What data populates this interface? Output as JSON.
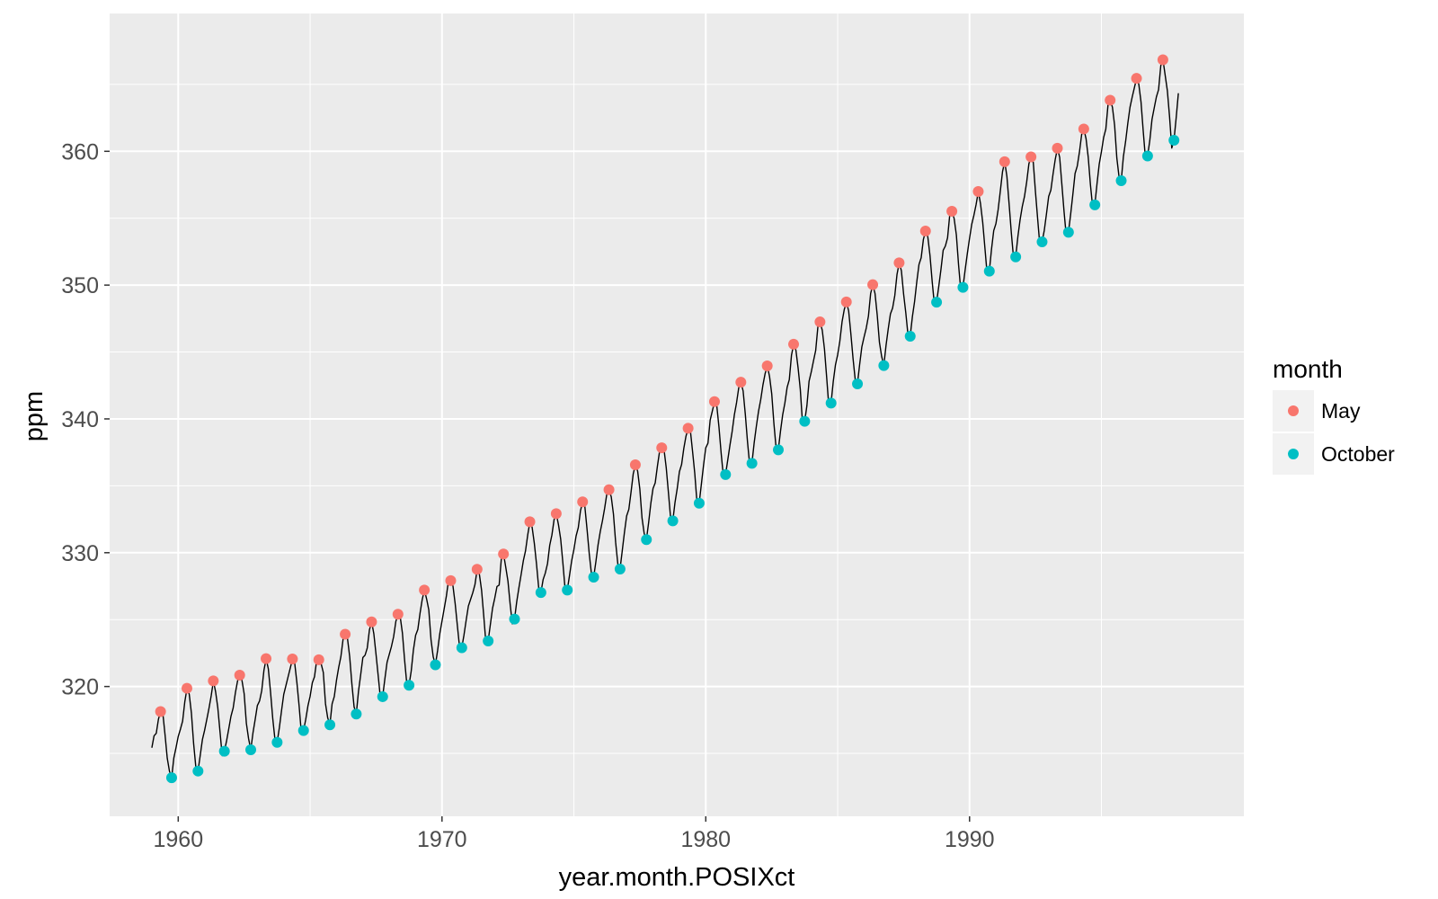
{
  "chart_data": {
    "type": "line",
    "title": "",
    "xlabel": "year.month.POSIXct",
    "ylabel": "ppm",
    "xlim": [
      1957.4,
      2000.4
    ],
    "ylim": [
      310.3,
      370.3
    ],
    "x_ticks": [
      1960,
      1970,
      1980,
      1990
    ],
    "x_tick_labels": [
      "1960",
      "1970",
      "1980",
      "1990"
    ],
    "y_ticks": [
      320,
      330,
      340,
      350,
      360
    ],
    "y_tick_labels": [
      "320",
      "330",
      "340",
      "350",
      "360"
    ],
    "grid": true,
    "background": "#EBEBEB",
    "line_color": "#000000",
    "series": [
      {
        "type": "line",
        "x_start": 1959.0,
        "x_step": 0.0833333,
        "values": [
          315.42,
          316.31,
          316.5,
          317.56,
          318.13,
          318.0,
          316.39,
          314.65,
          313.68,
          313.18,
          314.66,
          315.43,
          316.27,
          316.81,
          317.42,
          318.87,
          319.87,
          319.43,
          318.01,
          315.74,
          314.0,
          313.68,
          314.84,
          316.03,
          316.73,
          317.54,
          318.38,
          319.31,
          320.42,
          319.61,
          318.42,
          316.63,
          314.83,
          315.16,
          315.94,
          316.85,
          317.78,
          318.4,
          319.53,
          320.42,
          320.85,
          320.45,
          319.45,
          317.25,
          316.11,
          315.27,
          316.53,
          317.53,
          318.58,
          318.92,
          319.7,
          321.22,
          322.08,
          321.31,
          319.58,
          317.61,
          316.05,
          315.83,
          316.91,
          318.2,
          319.41,
          320.07,
          320.74,
          321.4,
          322.06,
          321.73,
          320.27,
          318.54,
          316.54,
          316.71,
          317.53,
          318.55,
          319.27,
          320.28,
          320.73,
          321.97,
          322.0,
          321.71,
          321.05,
          318.71,
          317.66,
          317.14,
          318.7,
          319.25,
          320.46,
          321.43,
          322.23,
          323.54,
          323.91,
          323.59,
          322.24,
          320.2,
          318.48,
          317.94,
          319.63,
          320.87,
          322.17,
          322.34,
          322.88,
          324.25,
          324.83,
          323.93,
          322.38,
          320.76,
          319.1,
          319.24,
          320.56,
          321.8,
          322.4,
          322.99,
          323.73,
          324.86,
          325.4,
          325.2,
          323.98,
          321.95,
          320.18,
          320.09,
          321.16,
          322.74,
          323.83,
          324.26,
          325.47,
          326.5,
          327.21,
          326.54,
          325.72,
          323.5,
          322.22,
          321.62,
          322.69,
          323.95,
          324.89,
          325.82,
          326.77,
          327.97,
          327.91,
          327.5,
          326.18,
          324.53,
          322.93,
          322.9,
          323.85,
          324.96,
          326.01,
          326.51,
          327.01,
          327.62,
          328.76,
          328.4,
          327.2,
          325.27,
          323.2,
          323.4,
          324.63,
          325.85,
          326.6,
          327.47,
          327.58,
          329.56,
          329.9,
          328.92,
          327.88,
          326.16,
          324.68,
          325.04,
          326.34,
          327.39,
          328.37,
          329.4,
          330.14,
          331.33,
          332.31,
          331.9,
          330.7,
          329.15,
          327.35,
          327.02,
          327.99,
          328.48,
          329.18,
          330.55,
          331.32,
          332.48,
          332.92,
          332.08,
          331.01,
          329.23,
          327.27,
          327.21,
          328.29,
          329.41,
          330.23,
          331.25,
          331.87,
          333.14,
          333.8,
          333.43,
          331.73,
          329.9,
          328.4,
          328.17,
          329.32,
          330.59,
          331.58,
          332.39,
          333.33,
          334.41,
          334.71,
          334.17,
          332.89,
          330.77,
          329.14,
          328.78,
          330.14,
          331.52,
          332.75,
          333.24,
          334.53,
          335.9,
          336.57,
          336.1,
          334.76,
          332.59,
          331.42,
          330.98,
          332.24,
          333.68,
          334.8,
          335.22,
          336.47,
          337.59,
          337.84,
          337.72,
          336.37,
          334.51,
          332.6,
          332.38,
          333.75,
          334.78,
          336.05,
          336.59,
          337.79,
          338.71,
          339.3,
          339.12,
          337.56,
          335.92,
          333.75,
          333.7,
          335.12,
          336.56,
          337.84,
          338.19,
          339.91,
          340.6,
          341.29,
          341.0,
          339.39,
          337.43,
          335.72,
          335.84,
          336.93,
          338.04,
          339.06,
          340.3,
          341.21,
          342.33,
          342.74,
          342.08,
          340.32,
          338.26,
          336.52,
          336.68,
          338.19,
          339.44,
          340.57,
          341.44,
          342.53,
          343.39,
          343.96,
          343.18,
          341.88,
          339.65,
          337.81,
          337.69,
          339.09,
          340.32,
          341.2,
          342.35,
          342.93,
          344.77,
          345.58,
          345.14,
          343.81,
          342.21,
          339.69,
          339.82,
          340.98,
          342.82,
          343.52,
          344.33,
          345.11,
          346.88,
          347.25,
          346.62,
          345.22,
          343.11,
          340.9,
          341.18,
          342.8,
          344.04,
          344.79,
          345.82,
          347.25,
          348.17,
          348.74,
          348.07,
          346.38,
          344.51,
          342.92,
          342.62,
          344.06,
          345.38,
          346.11,
          346.78,
          347.68,
          349.37,
          350.03,
          349.37,
          347.76,
          345.73,
          344.68,
          343.99,
          345.48,
          346.72,
          347.84,
          348.29,
          349.23,
          350.8,
          351.66,
          351.07,
          349.33,
          347.92,
          346.27,
          346.18,
          347.64,
          348.78,
          350.25,
          351.54,
          352.05,
          353.41,
          354.04,
          353.62,
          352.22,
          350.27,
          348.55,
          348.72,
          349.91,
          351.18,
          352.6,
          352.92,
          353.53,
          355.26,
          355.52,
          354.97,
          353.75,
          351.52,
          349.64,
          349.83,
          351.14,
          352.37,
          353.5,
          354.55,
          355.23,
          356.04,
          357.0,
          356.07,
          354.67,
          352.76,
          350.82,
          351.04,
          352.69,
          354.07,
          354.59,
          355.63,
          357.03,
          358.48,
          359.22,
          358.12,
          356.06,
          353.92,
          352.05,
          352.11,
          353.64,
          354.89,
          355.88,
          356.63,
          357.72,
          359.07,
          359.58,
          359.17,
          356.94,
          354.92,
          352.94,
          353.23,
          354.09,
          355.33,
          356.63,
          357.1,
          358.32,
          359.41,
          360.23,
          359.55,
          357.53,
          355.48,
          353.67,
          353.95,
          355.3,
          356.78,
          358.34,
          358.89,
          359.95,
          361.25,
          361.67,
          360.94,
          359.55,
          357.49,
          355.84,
          356.0,
          357.59,
          359.05,
          359.98,
          361.03,
          361.66,
          363.48,
          363.82,
          363.3,
          361.94,
          359.5,
          358.11,
          357.8,
          359.61,
          360.74,
          362.09,
          363.29,
          364.06,
          364.76,
          365.45,
          365.01,
          363.7,
          361.54,
          359.51,
          359.65,
          360.8,
          362.38,
          363.23,
          364.06,
          364.61,
          366.4,
          366.84,
          365.68,
          364.52,
          362.57,
          360.24,
          360.83,
          362.49,
          364.34
        ]
      },
      {
        "name": "May",
        "type": "scatter",
        "color": "#F8766D",
        "x": [
          1959.33,
          1960.33,
          1961.33,
          1962.33,
          1963.33,
          1964.33,
          1965.33,
          1966.33,
          1967.33,
          1968.33,
          1969.33,
          1970.33,
          1971.33,
          1972.33,
          1973.33,
          1974.33,
          1975.33,
          1976.33,
          1977.33,
          1978.33,
          1979.33,
          1980.33,
          1981.33,
          1982.33,
          1983.33,
          1984.33,
          1985.33,
          1986.33,
          1987.33,
          1988.33,
          1989.33,
          1990.33,
          1991.33,
          1992.33,
          1993.33,
          1994.33,
          1995.33,
          1996.33,
          1997.33
        ],
        "y": [
          318.13,
          319.87,
          320.42,
          320.85,
          322.08,
          322.06,
          322.0,
          323.91,
          324.83,
          325.4,
          327.21,
          327.91,
          328.76,
          329.9,
          332.31,
          332.92,
          333.8,
          334.71,
          336.57,
          337.84,
          339.3,
          341.29,
          342.74,
          343.96,
          345.58,
          347.25,
          348.74,
          350.03,
          351.66,
          354.04,
          355.52,
          357.0,
          359.22,
          359.58,
          360.23,
          361.67,
          363.82,
          365.45,
          366.84
        ]
      },
      {
        "name": "October",
        "type": "scatter",
        "color": "#00BFC4",
        "x": [
          1959.75,
          1960.75,
          1961.75,
          1962.75,
          1963.75,
          1964.75,
          1965.75,
          1966.75,
          1967.75,
          1968.75,
          1969.75,
          1970.75,
          1971.75,
          1972.75,
          1973.75,
          1974.75,
          1975.75,
          1976.75,
          1977.75,
          1978.75,
          1979.75,
          1980.75,
          1981.75,
          1982.75,
          1983.75,
          1984.75,
          1985.75,
          1986.75,
          1987.75,
          1988.75,
          1989.75,
          1990.75,
          1991.75,
          1992.75,
          1993.75,
          1994.75,
          1995.75,
          1996.75,
          1997.75
        ],
        "y": [
          313.18,
          313.68,
          315.16,
          315.27,
          315.83,
          316.71,
          317.14,
          317.94,
          319.24,
          320.09,
          321.62,
          322.9,
          323.4,
          325.04,
          327.02,
          327.21,
          328.17,
          328.78,
          330.98,
          332.38,
          333.7,
          335.84,
          336.68,
          337.69,
          339.82,
          341.18,
          342.62,
          343.99,
          346.18,
          348.72,
          349.83,
          351.04,
          352.11,
          353.23,
          353.95,
          356.0,
          357.8,
          359.65,
          360.83
        ]
      }
    ],
    "legend": {
      "title": "month",
      "position": "right",
      "entries": [
        {
          "label": "May",
          "color": "#F8766D"
        },
        {
          "label": "October",
          "color": "#00BFC4"
        }
      ]
    }
  }
}
